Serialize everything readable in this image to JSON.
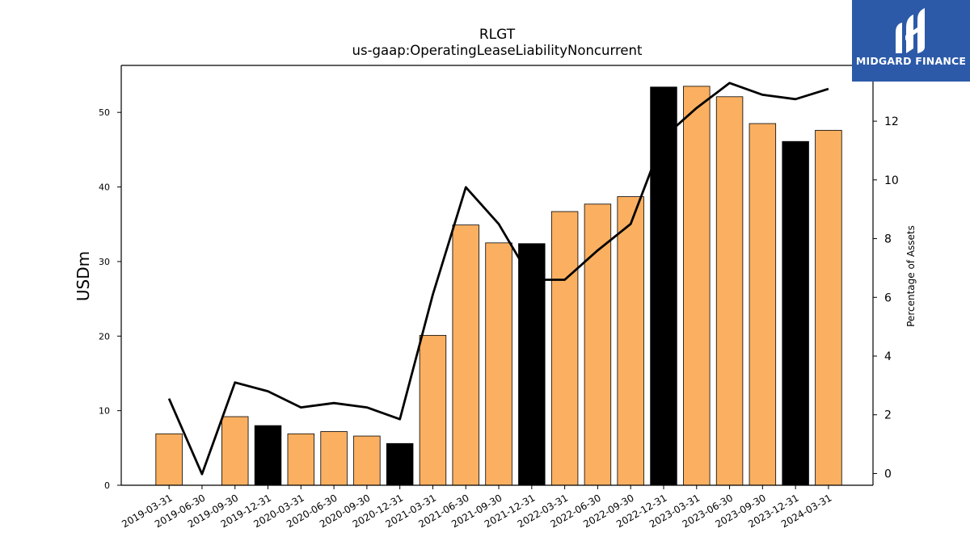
{
  "chart_data": {
    "type": "bar",
    "title": "RLGT",
    "subtitle": "us-gaap:OperatingLeaseLiabilityNoncurrent",
    "ylabel": "USDm",
    "y2label": "Percentage of Assets",
    "ylim": [
      0,
      56.3
    ],
    "y2lim": [
      -0.4,
      13.9
    ],
    "yticks": [
      0,
      10,
      20,
      30,
      40,
      50
    ],
    "y2ticks": [
      0,
      2,
      4,
      6,
      8,
      10,
      12
    ],
    "categories": [
      "2019-03-31",
      "2019-06-30",
      "2019-09-30",
      "2019-12-31",
      "2020-03-31",
      "2020-06-30",
      "2020-09-30",
      "2020-12-31",
      "2021-03-31",
      "2021-06-30",
      "2021-09-30",
      "2021-12-31",
      "2022-03-31",
      "2022-06-30",
      "2022-09-30",
      "2022-12-31",
      "2023-03-31",
      "2023-06-30",
      "2023-09-30",
      "2023-12-31",
      "2024-03-31"
    ],
    "series": [
      {
        "type": "bar",
        "axis": "left",
        "values": [
          6.9,
          0,
          9.2,
          8.0,
          6.9,
          7.2,
          6.6,
          5.6,
          20.1,
          34.9,
          32.5,
          32.4,
          36.7,
          37.7,
          38.7,
          53.4,
          53.5,
          52.1,
          48.5,
          46.1,
          47.6
        ]
      },
      {
        "type": "line",
        "axis": "right",
        "values": [
          2.55,
          -0.02,
          3.1,
          2.8,
          2.25,
          2.4,
          2.25,
          1.85,
          6.1,
          9.75,
          8.5,
          6.6,
          6.6,
          7.6,
          8.5,
          11.45,
          12.45,
          13.3,
          12.9,
          12.75,
          13.1
        ]
      }
    ],
    "bar_colors": {
      "quarter": "#fbb061",
      "year_end": "#000000"
    },
    "year_end_flags": [
      false,
      false,
      false,
      true,
      false,
      false,
      false,
      true,
      false,
      false,
      false,
      true,
      false,
      false,
      false,
      true,
      false,
      false,
      false,
      true,
      false
    ],
    "line_color": "#000000",
    "grid": false
  },
  "logo": {
    "text": "MIDGARD FINANCE",
    "background": "#2c5aa8"
  }
}
